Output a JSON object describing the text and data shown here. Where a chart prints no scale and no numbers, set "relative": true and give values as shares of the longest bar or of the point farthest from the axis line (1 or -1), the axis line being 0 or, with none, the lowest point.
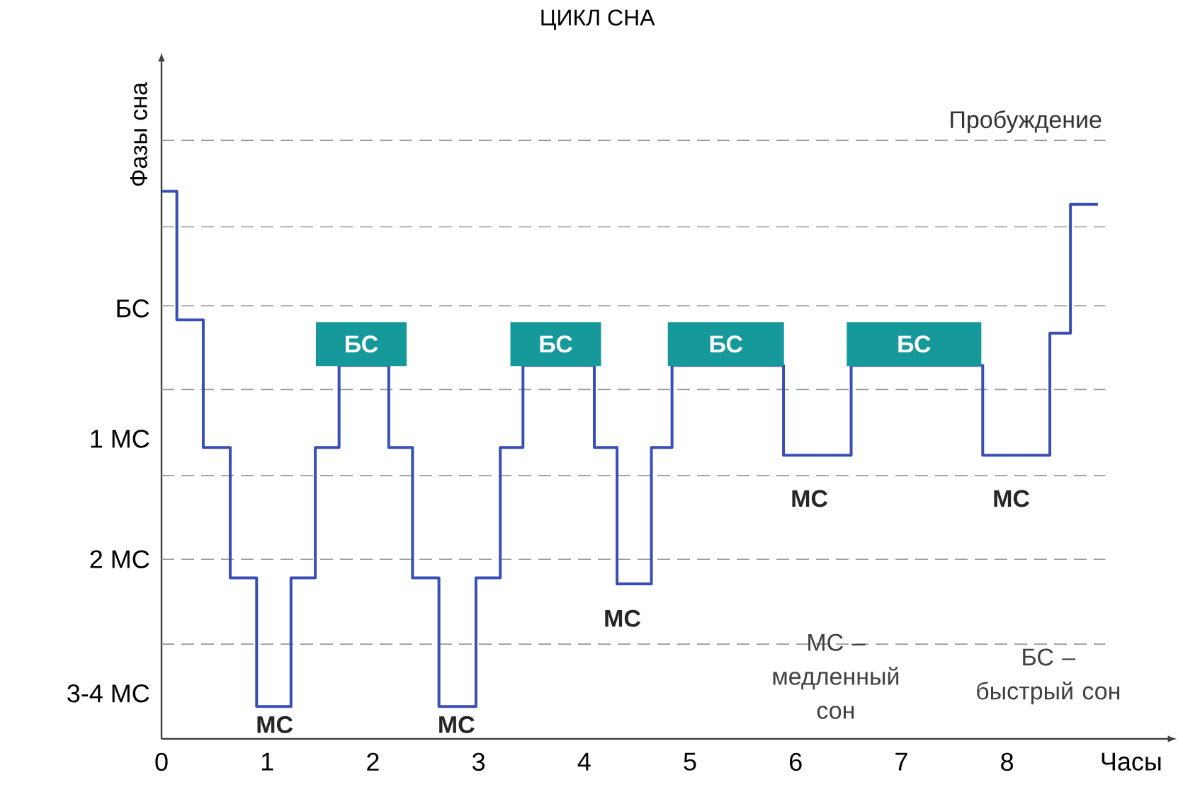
{
  "chart_data": {
    "type": "step",
    "title": "ЦИКЛ СНА",
    "xlabel": "Часы",
    "ylabel": "Фазы сна",
    "xlim": [
      0,
      9.5
    ],
    "relative": true,
    "xticks": [
      0,
      1,
      2,
      3,
      4,
      5,
      6,
      7,
      8
    ],
    "marker": "none",
    "line_style": "solid",
    "series": [
      {
        "color": "#3a4fb5",
        "x": [
          0,
          0.145,
          0.395,
          0.65,
          0.9,
          1.225,
          1.455,
          1.68,
          2.15,
          2.375,
          2.625,
          2.975,
          3.205,
          3.42,
          4.095,
          4.31,
          4.635,
          4.83,
          5.885,
          6.525,
          7.77,
          8.405,
          8.6,
          8.86
        ],
        "values": [
          1.0,
          0.765,
          0.532,
          0.294,
          0.059,
          0.294,
          0.532,
          0.682,
          0.532,
          0.294,
          0.059,
          0.294,
          0.532,
          0.682,
          0.532,
          0.283,
          0.532,
          0.682,
          0.518,
          0.682,
          0.518,
          0.741,
          0.976,
          0.976
        ]
      }
    ],
    "ref_lines": [
      {
        "axis": "y",
        "value": 1.093,
        "label": "Пробуждение",
        "color": "#999999",
        "line_style": "dashed"
      },
      {
        "axis": "y",
        "value": 0.935,
        "color": "#999999",
        "line_style": "dashed"
      },
      {
        "axis": "y",
        "value": 0.791,
        "color": "#999999",
        "line_style": "dashed"
      },
      {
        "axis": "y",
        "value": 0.638,
        "color": "#999999",
        "line_style": "dashed"
      },
      {
        "axis": "y",
        "value": 0.481,
        "color": "#999999",
        "line_style": "dashed"
      },
      {
        "axis": "y",
        "value": 0.328,
        "color": "#999999",
        "line_style": "dashed"
      },
      {
        "axis": "y",
        "value": 0.173,
        "color": "#999999",
        "line_style": "dashed"
      }
    ],
    "annotations": [
      "БС",
      "1 МС",
      "2 МС",
      "3-4 МС",
      "БС",
      "БС",
      "БС",
      "БС",
      "МС",
      "МС",
      "МС",
      "МС",
      "МС",
      "МС – медленный сон",
      "БС – быстрый сон"
    ]
  }
}
